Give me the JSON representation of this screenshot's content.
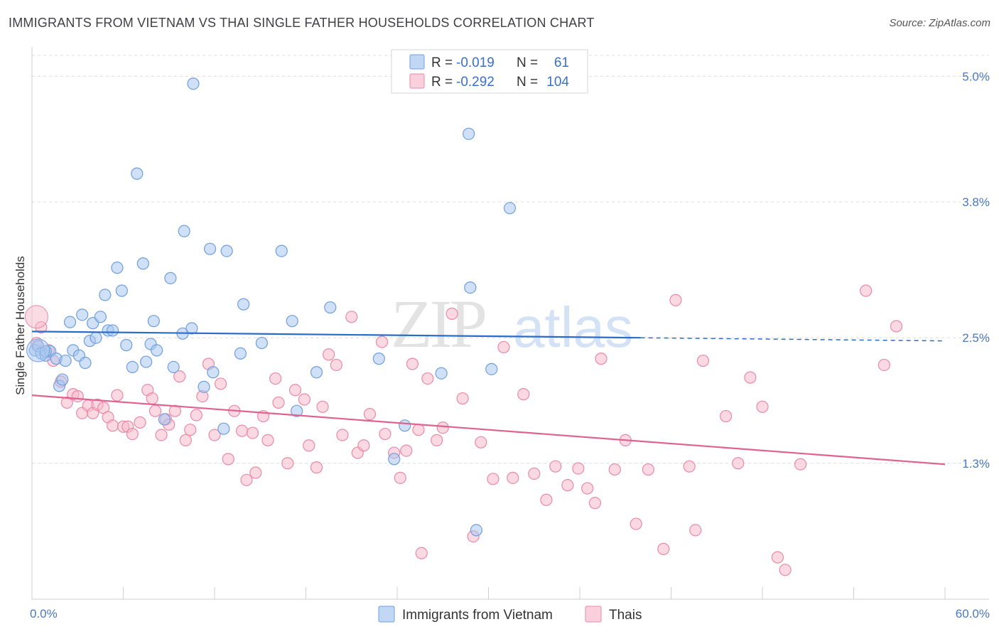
{
  "title": "IMMIGRANTS FROM VIETNAM VS THAI SINGLE FATHER HOUSEHOLDS CORRELATION CHART",
  "source": "Source: ZipAtlas.com",
  "colors": {
    "vietnam_fill": "#a9c7f0",
    "vietnam_stroke": "#6f9fdc",
    "vietnam_line": "#2a6cc9",
    "thai_fill": "#f6b9cc",
    "thai_stroke": "#e98aa8",
    "thai_line": "#e0628f",
    "grid": "#dcdcdc",
    "tick_text": "#4a78c2"
  },
  "legend": {
    "rows": [
      {
        "r_label": "R =",
        "r_value": "-0.019",
        "n_label": "N =",
        "n_value": "61"
      },
      {
        "r_label": "R =",
        "r_value": "-0.292",
        "n_label": "N =",
        "n_value": "104"
      }
    ]
  },
  "watermark": {
    "zip": "ZIP",
    "atlas": "atlas"
  },
  "chart_data": {
    "type": "scatter",
    "title": "IMMIGRANTS FROM VIETNAM VS THAI SINGLE FATHER HOUSEHOLDS CORRELATION CHART",
    "xlabel": "",
    "ylabel": "Single Father Households",
    "xlim": [
      0,
      60
    ],
    "ylim": [
      0,
      5.2
    ],
    "x_tick_labels": [
      "0.0%",
      "60.0%"
    ],
    "y_ticks": [
      1.3,
      2.5,
      3.8,
      5.0
    ],
    "y_tick_labels": [
      "1.3%",
      "2.5%",
      "3.8%",
      "5.0%"
    ],
    "grid": true,
    "series": [
      {
        "name": "Immigrants from Vietnam",
        "R": -0.019,
        "N": 61,
        "trend": {
          "x0": 0,
          "y0": 2.56,
          "x1": 40,
          "y1": 2.5,
          "dash_to_x": 60,
          "dash_to_y": 2.47
        },
        "points": [
          [
            0.2,
            2.38
          ],
          [
            0.4,
            2.42
          ],
          [
            0.6,
            2.35
          ],
          [
            0.9,
            2.33
          ],
          [
            1.2,
            2.37
          ],
          [
            1.6,
            2.3
          ],
          [
            1.8,
            2.04
          ],
          [
            2.0,
            2.1
          ],
          [
            2.2,
            2.28
          ],
          [
            2.5,
            2.65
          ],
          [
            2.7,
            2.38
          ],
          [
            3.1,
            2.33
          ],
          [
            3.3,
            2.72
          ],
          [
            3.5,
            2.26
          ],
          [
            3.8,
            2.47
          ],
          [
            4.0,
            2.64
          ],
          [
            4.2,
            2.5
          ],
          [
            4.5,
            2.7
          ],
          [
            4.8,
            2.91
          ],
          [
            5.0,
            2.57
          ],
          [
            5.3,
            2.57
          ],
          [
            5.6,
            3.17
          ],
          [
            5.9,
            2.95
          ],
          [
            6.2,
            2.43
          ],
          [
            6.6,
            2.22
          ],
          [
            6.9,
            4.07
          ],
          [
            7.3,
            3.21
          ],
          [
            7.5,
            2.27
          ],
          [
            7.8,
            2.44
          ],
          [
            8.0,
            2.66
          ],
          [
            8.2,
            2.38
          ],
          [
            8.7,
            1.72
          ],
          [
            9.1,
            3.07
          ],
          [
            9.3,
            2.22
          ],
          [
            9.9,
            2.54
          ],
          [
            10.0,
            3.52
          ],
          [
            10.5,
            2.59
          ],
          [
            10.6,
            4.93
          ],
          [
            11.3,
            2.03
          ],
          [
            11.7,
            3.35
          ],
          [
            11.9,
            2.17
          ],
          [
            12.6,
            1.63
          ],
          [
            12.8,
            3.33
          ],
          [
            13.7,
            2.35
          ],
          [
            13.9,
            2.82
          ],
          [
            15.1,
            2.45
          ],
          [
            16.4,
            3.33
          ],
          [
            17.1,
            2.66
          ],
          [
            17.4,
            1.8
          ],
          [
            18.7,
            2.17
          ],
          [
            19.6,
            2.79
          ],
          [
            22.8,
            2.3
          ],
          [
            23.8,
            1.34
          ],
          [
            24.5,
            1.66
          ],
          [
            26.9,
            2.16
          ],
          [
            28.7,
            4.45
          ],
          [
            28.8,
            2.98
          ],
          [
            29.2,
            0.66
          ],
          [
            30.2,
            2.2
          ],
          [
            31.4,
            3.74
          ],
          [
            0.9,
            2.37
          ]
        ]
      },
      {
        "name": "Thais",
        "R": -0.292,
        "N": 104,
        "trend": {
          "x0": 0,
          "y0": 1.95,
          "x1": 60,
          "y1": 1.29
        },
        "points": [
          [
            0.3,
            2.45
          ],
          [
            0.6,
            2.6
          ],
          [
            1.1,
            2.38
          ],
          [
            1.4,
            2.28
          ],
          [
            1.9,
            2.08
          ],
          [
            2.3,
            1.88
          ],
          [
            2.7,
            1.96
          ],
          [
            3.0,
            1.94
          ],
          [
            3.3,
            1.78
          ],
          [
            3.7,
            1.85
          ],
          [
            4.0,
            1.78
          ],
          [
            4.3,
            1.86
          ],
          [
            4.7,
            1.83
          ],
          [
            5.0,
            1.74
          ],
          [
            5.3,
            1.66
          ],
          [
            5.6,
            1.95
          ],
          [
            6.0,
            1.65
          ],
          [
            6.3,
            1.65
          ],
          [
            6.6,
            1.58
          ],
          [
            7.1,
            1.69
          ],
          [
            7.6,
            2.0
          ],
          [
            7.9,
            1.92
          ],
          [
            8.1,
            1.8
          ],
          [
            8.5,
            1.57
          ],
          [
            8.8,
            1.72
          ],
          [
            9.0,
            1.67
          ],
          [
            9.4,
            1.8
          ],
          [
            9.7,
            2.13
          ],
          [
            10.1,
            1.52
          ],
          [
            10.4,
            1.62
          ],
          [
            10.8,
            1.76
          ],
          [
            11.2,
            1.94
          ],
          [
            11.6,
            2.25
          ],
          [
            12.0,
            1.57
          ],
          [
            12.4,
            2.06
          ],
          [
            12.9,
            1.34
          ],
          [
            13.3,
            1.8
          ],
          [
            13.8,
            1.61
          ],
          [
            14.1,
            1.14
          ],
          [
            14.5,
            1.59
          ],
          [
            14.7,
            1.21
          ],
          [
            15.2,
            1.75
          ],
          [
            15.5,
            1.52
          ],
          [
            16.0,
            2.11
          ],
          [
            16.2,
            1.88
          ],
          [
            16.8,
            1.3
          ],
          [
            17.3,
            2.0
          ],
          [
            17.9,
            1.91
          ],
          [
            18.2,
            1.47
          ],
          [
            18.7,
            1.26
          ],
          [
            19.1,
            1.84
          ],
          [
            19.5,
            2.34
          ],
          [
            20.0,
            2.24
          ],
          [
            20.4,
            1.57
          ],
          [
            21.0,
            2.7
          ],
          [
            21.4,
            1.4
          ],
          [
            21.8,
            1.47
          ],
          [
            22.2,
            1.77
          ],
          [
            23.0,
            2.46
          ],
          [
            23.2,
            1.58
          ],
          [
            23.8,
            1.4
          ],
          [
            24.2,
            1.16
          ],
          [
            24.6,
            1.42
          ],
          [
            25.0,
            2.25
          ],
          [
            25.4,
            1.62
          ],
          [
            25.6,
            0.44
          ],
          [
            26.0,
            2.11
          ],
          [
            26.6,
            1.52
          ],
          [
            27.0,
            1.64
          ],
          [
            27.6,
            2.73
          ],
          [
            28.3,
            1.92
          ],
          [
            29.0,
            0.6
          ],
          [
            29.5,
            1.5
          ],
          [
            30.3,
            1.15
          ],
          [
            31.0,
            2.41
          ],
          [
            31.6,
            1.16
          ],
          [
            32.3,
            1.96
          ],
          [
            33.0,
            1.2
          ],
          [
            33.8,
            0.95
          ],
          [
            34.4,
            1.27
          ],
          [
            35.2,
            1.09
          ],
          [
            35.9,
            1.25
          ],
          [
            36.5,
            1.06
          ],
          [
            37.0,
            0.92
          ],
          [
            37.4,
            2.3
          ],
          [
            38.3,
            1.24
          ],
          [
            39.0,
            1.52
          ],
          [
            39.7,
            0.72
          ],
          [
            40.5,
            1.24
          ],
          [
            41.5,
            0.48
          ],
          [
            42.3,
            2.86
          ],
          [
            43.2,
            1.27
          ],
          [
            43.6,
            0.66
          ],
          [
            44.1,
            2.28
          ],
          [
            45.6,
            1.75
          ],
          [
            46.4,
            1.3
          ],
          [
            50.5,
            1.29
          ],
          [
            54.8,
            2.95
          ],
          [
            56.0,
            2.24
          ],
          [
            56.8,
            2.61
          ],
          [
            47.2,
            2.12
          ],
          [
            48.0,
            1.84
          ],
          [
            49.0,
            0.4
          ],
          [
            49.5,
            0.28
          ]
        ]
      }
    ]
  },
  "bottom_legend": {
    "items": [
      {
        "label": "Immigrants from Vietnam"
      },
      {
        "label": "Thais"
      }
    ]
  }
}
